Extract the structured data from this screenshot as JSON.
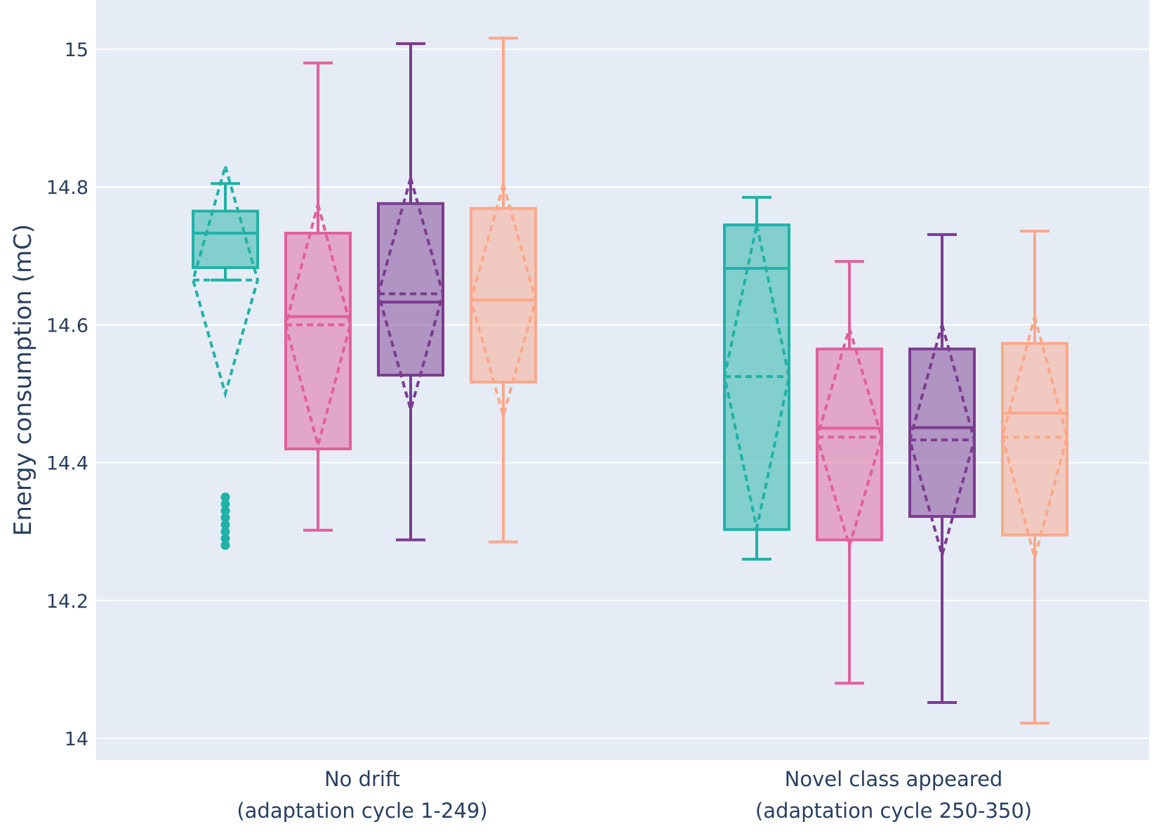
{
  "chart_data": {
    "type": "box",
    "title": "",
    "xlabel": "",
    "ylabel": "Energy consumption (mC)",
    "ylim": [
      13.967,
      15.07
    ],
    "yticks": [
      14,
      14.2,
      14.4,
      14.6,
      14.8,
      15
    ],
    "ytick_labels": [
      "14",
      "14.2",
      "14.4",
      "14.6",
      "14.8",
      "15"
    ],
    "grid": true,
    "legend": "none",
    "categories": [
      {
        "line1": "No drift",
        "line2": "(adaptation cycle 1-249)"
      },
      {
        "line1": "Novel class appeared",
        "line2": "(adaptation cycle 250-350)"
      }
    ],
    "series": [
      {
        "color": "#20b2a6",
        "boxes": [
          {
            "whisker_low": 14.665,
            "q1": 14.683,
            "median": 14.733,
            "q3": 14.765,
            "whisker_high": 14.805,
            "mean": 14.665,
            "sd": 0.165,
            "outliers": [
              14.28,
              14.29,
              14.3,
              14.31,
              14.32,
              14.33,
              14.34,
              14.35
            ]
          },
          {
            "whisker_low": 14.26,
            "q1": 14.303,
            "median": 14.682,
            "q3": 14.745,
            "whisker_high": 14.785,
            "mean": 14.525,
            "sd": 0.22,
            "outliers": []
          }
        ]
      },
      {
        "color": "#e0609b",
        "boxes": [
          {
            "whisker_low": 14.302,
            "q1": 14.42,
            "median": 14.612,
            "q3": 14.733,
            "whisker_high": 14.98,
            "mean": 14.6,
            "sd": 0.175,
            "outliers": []
          },
          {
            "whisker_low": 14.08,
            "q1": 14.288,
            "median": 14.45,
            "q3": 14.565,
            "whisker_high": 14.692,
            "mean": 14.437,
            "sd": 0.158,
            "outliers": []
          }
        ]
      },
      {
        "color": "#7b3c8f",
        "boxes": [
          {
            "whisker_low": 14.288,
            "q1": 14.527,
            "median": 14.633,
            "q3": 14.776,
            "whisker_high": 15.008,
            "mean": 14.645,
            "sd": 0.168,
            "outliers": []
          },
          {
            "whisker_low": 14.052,
            "q1": 14.322,
            "median": 14.451,
            "q3": 14.565,
            "whisker_high": 14.731,
            "mean": 14.433,
            "sd": 0.167,
            "outliers": []
          }
        ]
      },
      {
        "color": "#fba889",
        "boxes": [
          {
            "whisker_low": 14.285,
            "q1": 14.517,
            "median": 14.636,
            "q3": 14.769,
            "whisker_high": 15.016,
            "mean": 14.636,
            "sd": 0.168,
            "outliers": []
          },
          {
            "whisker_low": 14.022,
            "q1": 14.295,
            "median": 14.472,
            "q3": 14.573,
            "whisker_high": 14.736,
            "mean": 14.437,
            "sd": 0.175,
            "outliers": []
          }
        ]
      }
    ]
  }
}
